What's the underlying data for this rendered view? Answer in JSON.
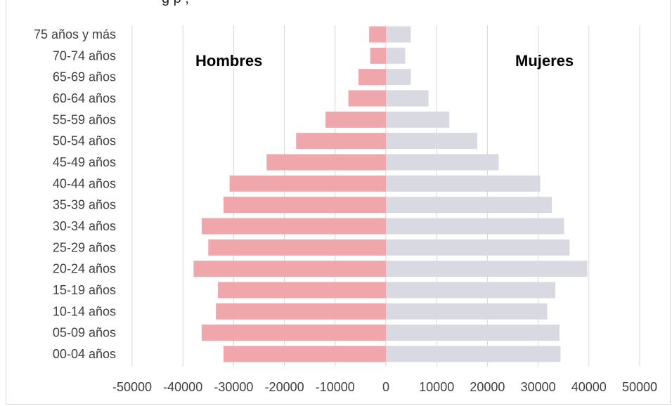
{
  "chart_data": {
    "type": "bar",
    "orientation": "horizontal",
    "title_fragment": "g                            p              ,",
    "categories": [
      "00-04 años",
      "05-09 años",
      "10-14 años",
      "15-19 años",
      "20-24 años",
      "25-29 años",
      "30-34 años",
      "35-39 años",
      "40-44 años",
      "45-49 años",
      "50-54 años",
      "55-59 años",
      "60-64 años",
      "65-69 años",
      "70-74 años",
      "75 años y más"
    ],
    "series": [
      {
        "name": "Hombres",
        "color": "#EFA7AC",
        "values": [
          -32000,
          -36300,
          -33500,
          -33100,
          -37900,
          -35000,
          -36300,
          -32000,
          -30800,
          -23500,
          -17700,
          -11900,
          -7400,
          -5400,
          -3100,
          -3300
        ]
      },
      {
        "name": "Mujeres",
        "color": "#D9D9E1",
        "values": [
          34400,
          34200,
          31800,
          33400,
          39700,
          36200,
          35100,
          32700,
          30400,
          22200,
          18000,
          12500,
          8400,
          4900,
          3800,
          4900
        ]
      }
    ],
    "x_ticks": [
      "-50000",
      "-40000",
      "-30000",
      "-20000",
      "-10000",
      "0",
      "10000",
      "20000",
      "30000",
      "40000",
      "50000"
    ],
    "xlim": [
      -50000,
      50000
    ],
    "grid": "vertical",
    "legend": "none",
    "annotations": {
      "left": "Hombres",
      "right": "Mujeres"
    }
  }
}
